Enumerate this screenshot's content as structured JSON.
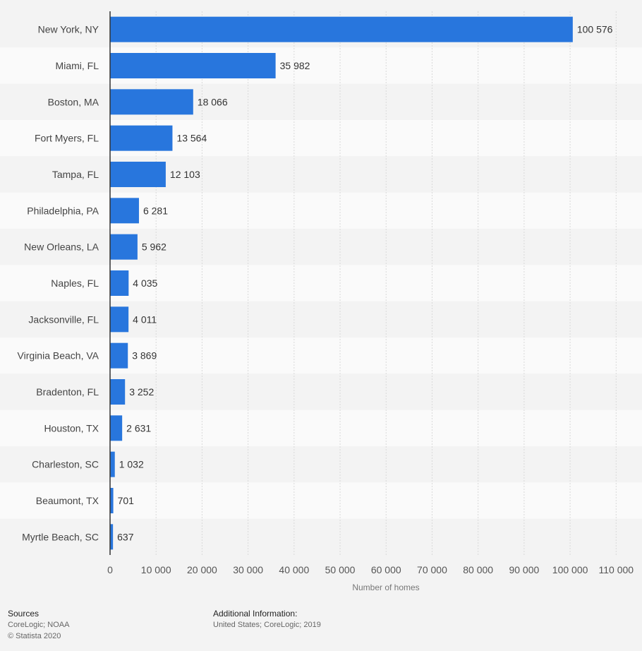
{
  "chart_data": {
    "type": "bar",
    "orientation": "horizontal",
    "categories": [
      "New York, NY",
      "Miami, FL",
      "Boston, MA",
      "Fort Myers, FL",
      "Tampa, FL",
      "Philadelphia, PA",
      "New Orleans, LA",
      "Naples, FL",
      "Jacksonville, FL",
      "Virginia Beach, VA",
      "Bradenton, FL",
      "Houston, TX",
      "Charleston, SC",
      "Beaumont, TX",
      "Myrtle Beach, SC"
    ],
    "values": [
      100576,
      35982,
      18066,
      13564,
      12103,
      6281,
      5962,
      4035,
      4011,
      3869,
      3252,
      2631,
      1032,
      701,
      637
    ],
    "value_labels": [
      "100 576",
      "35 982",
      "18 066",
      "13 564",
      "12 103",
      "6 281",
      "5 962",
      "4 035",
      "4 011",
      "3 869",
      "3 252",
      "2 631",
      "1 032",
      "701",
      "637"
    ],
    "xlabel": "Number of homes",
    "ylabel": "",
    "xlim": [
      0,
      110000
    ],
    "ticks": [
      0,
      10000,
      20000,
      30000,
      40000,
      50000,
      60000,
      70000,
      80000,
      90000,
      100000,
      110000
    ],
    "tick_labels": [
      "0",
      "10 000",
      "20 000",
      "30 000",
      "40 000",
      "50 000",
      "60 000",
      "70 000",
      "80 000",
      "90 000",
      "100 000",
      "110 000"
    ],
    "grid": true,
    "bar_color": "#2876dd",
    "row_colors": [
      "#f3f3f3",
      "#fafafa"
    ]
  },
  "footer": {
    "sources_heading": "Sources",
    "sources_text": "CoreLogic; NOAA",
    "copyright": "© Statista 2020",
    "additional_heading": "Additional Information:",
    "additional_text": "United States; CoreLogic; 2019"
  }
}
